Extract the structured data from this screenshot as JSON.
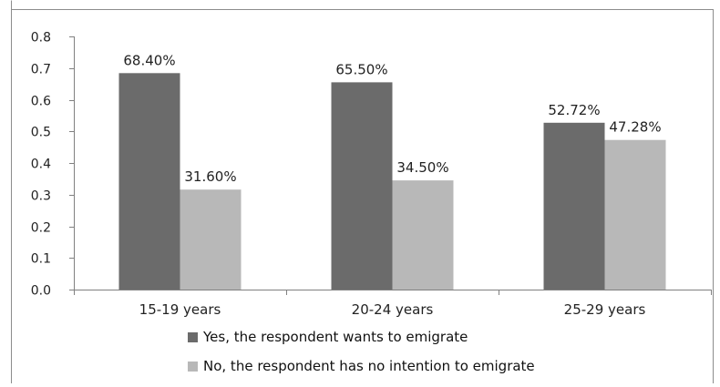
{
  "chart_data": {
    "type": "bar",
    "categories": [
      "15-19 years",
      "20-24 years",
      "25-29 years"
    ],
    "series": [
      {
        "name": "Yes, the respondent wants to emigrate",
        "values": [
          0.684,
          0.655,
          0.5272
        ],
        "labels": [
          "68.40%",
          "65.50%",
          "52.72%"
        ],
        "color": "#6b6b6b"
      },
      {
        "name": "No, the respondent has no intention to emigrate",
        "values": [
          0.316,
          0.345,
          0.4728
        ],
        "labels": [
          "31.60%",
          "34.50%",
          "47.28%"
        ],
        "color": "#b8b8b8"
      }
    ],
    "ylim": [
      0,
      0.8
    ],
    "yticks": [
      "0.0",
      "0.1",
      "0.2",
      "0.3",
      "0.4",
      "0.5",
      "0.6",
      "0.7",
      "0.8"
    ],
    "title": "",
    "xlabel": "",
    "ylabel": "",
    "grid": false,
    "legend_position": "bottom"
  }
}
